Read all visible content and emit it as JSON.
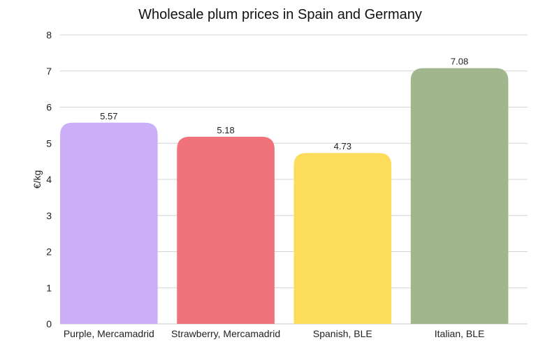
{
  "chart_data": {
    "type": "bar",
    "title": "Wholesale plum prices in Spain and Germany",
    "xlabel": "",
    "ylabel": "€/kg",
    "ylim": [
      0,
      8
    ],
    "yticks": [
      0,
      1,
      2,
      3,
      4,
      5,
      6,
      7,
      8
    ],
    "grid": true,
    "categories": [
      "Purple, Mercamadrid",
      "Strawberry, Mercamadrid",
      "Spanish, BLE",
      "Italian, BLE"
    ],
    "values": [
      5.57,
      5.18,
      4.73,
      7.08
    ],
    "value_labels": [
      "5.57",
      "5.18",
      "4.73",
      "7.08"
    ],
    "colors": [
      "#cbb0f9",
      "#f0737b",
      "#fddc5c",
      "#a2b68d"
    ]
  }
}
